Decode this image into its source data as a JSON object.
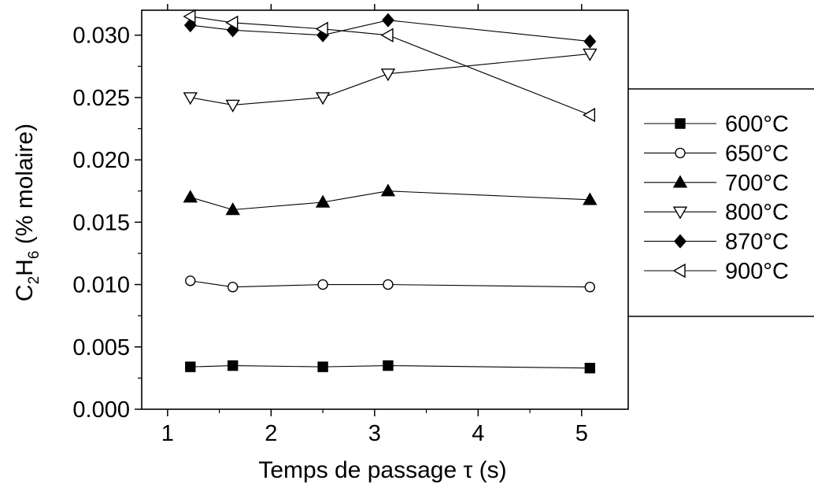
{
  "chart_data": {
    "type": "line",
    "xlabel": "Temps de passage τ (s)",
    "ylabel": {
      "prefix": "C",
      "sub1": "2",
      "mid": "H",
      "sub2": "6",
      "suffix": " (% molaire)"
    },
    "xlim": [
      0.75,
      5.45
    ],
    "ylim": [
      0.0,
      0.032
    ],
    "xticks": [
      1,
      2,
      3,
      4,
      5
    ],
    "xtick_labels": [
      "1",
      "2",
      "3",
      "4",
      "5"
    ],
    "yticks": [
      0.0,
      0.005,
      0.01,
      0.015,
      0.02,
      0.025,
      0.03
    ],
    "ytick_labels": [
      "0.000",
      "0.005",
      "0.010",
      "0.015",
      "0.020",
      "0.025",
      "0.030"
    ],
    "grid": false,
    "legend_position": "right",
    "x": [
      1.22,
      1.63,
      2.5,
      3.13,
      5.08
    ],
    "series": [
      {
        "name": "600°C",
        "marker": "square-filled",
        "values": [
          0.0034,
          0.0035,
          0.0034,
          0.0035,
          0.0033
        ]
      },
      {
        "name": "650°C",
        "marker": "circle-open",
        "values": [
          0.0103,
          0.0098,
          0.01,
          0.01,
          0.0098
        ]
      },
      {
        "name": "700°C",
        "marker": "triangle-up-filled",
        "values": [
          0.017,
          0.016,
          0.0166,
          0.0175,
          0.0168
        ]
      },
      {
        "name": "800°C",
        "marker": "triangle-down-open",
        "values": [
          0.025,
          0.0244,
          0.025,
          0.0269,
          0.0285
        ]
      },
      {
        "name": "870°C",
        "marker": "diamond-filled",
        "values": [
          0.0308,
          0.0304,
          0.03,
          0.0312,
          0.0295
        ]
      },
      {
        "name": "900°C",
        "marker": "triangle-left-open",
        "values": [
          0.0315,
          0.031,
          0.0305,
          0.03,
          0.0236
        ]
      }
    ]
  }
}
